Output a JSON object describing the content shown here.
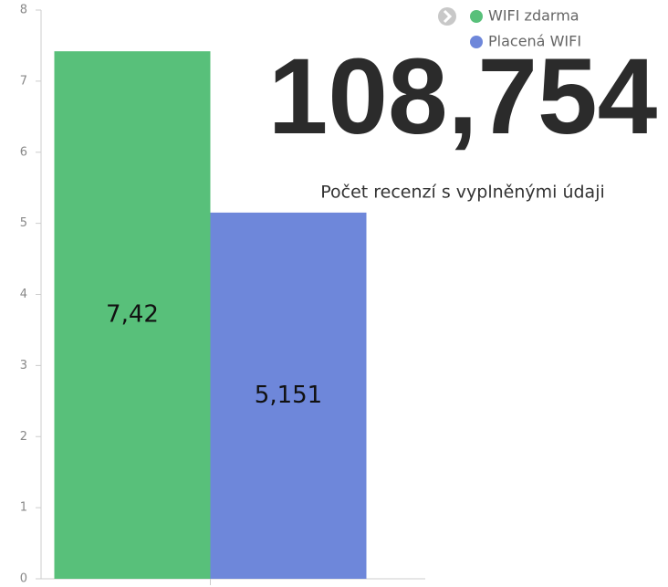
{
  "chart_data": {
    "type": "bar",
    "categories": [
      null
    ],
    "series": [
      {
        "name": "WIFI zdarma",
        "color": "#58c07a",
        "values": [
          7.42
        ],
        "value_labels": [
          "7,42"
        ]
      },
      {
        "name": "Placená WIFI",
        "color": "#6e87da",
        "values": [
          5.151
        ],
        "value_labels": [
          "5,151"
        ]
      }
    ],
    "ylim": [
      0,
      8
    ],
    "yticks": [
      0,
      1,
      2,
      3,
      4,
      5,
      6,
      7,
      8
    ],
    "legend": "top-right"
  },
  "kpi": {
    "value": "108,754",
    "label": "Počet recenzí s vyplněnými údaji"
  }
}
